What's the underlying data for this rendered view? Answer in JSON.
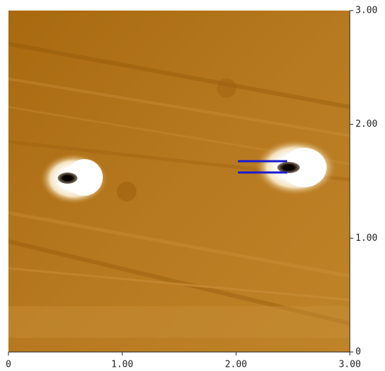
{
  "image": {
    "xlim": [
      0,
      3
    ],
    "ylim": [
      0,
      3
    ],
    "xticks": [
      0,
      {
        "value": 1,
        "label": "1.00"
      },
      {
        "value": 2,
        "label": "2.00"
      },
      {
        "value": 3,
        "label": "3.00"
      }
    ],
    "yticks": [
      0,
      {
        "value": 1,
        "label": "1.00"
      },
      {
        "value": 2,
        "label": "2.00"
      },
      {
        "value": 3,
        "label": "3.00"
      }
    ]
  }
}
